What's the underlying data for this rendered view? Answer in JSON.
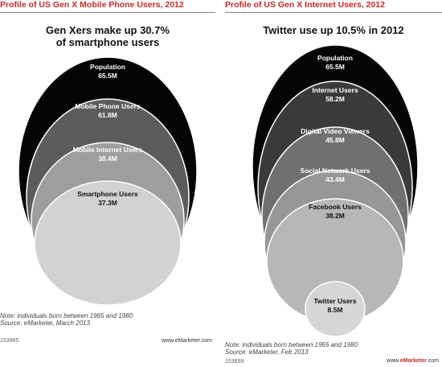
{
  "chart_data": [
    {
      "type": "nested-circles",
      "title": "Profile of US Gen X Mobile Phone Users, 2012",
      "headline": [
        "Gen Xers make up 30.7%",
        "of smartphone users"
      ],
      "categories": [
        "Population",
        "Mobile Phone Users",
        "Mobile Internet Users",
        "Smartphone Users"
      ],
      "values": [
        "65.5M",
        "61.8M",
        "38.4M",
        "37.3M"
      ],
      "fills": [
        "#050505",
        "#5c5c5c",
        "#9e9e9e",
        "#d2d2d2"
      ],
      "label_colors": [
        "#ffffff",
        "#ffffff",
        "#ffffff",
        "#111111"
      ],
      "note": [
        "Note: individuals born between 1965 and 1980",
        "Source: eMarketer, March 2013"
      ],
      "id": "153965",
      "brand": "www.eMarketer.com"
    },
    {
      "type": "nested-circles",
      "title": "Profile of US Gen X Internet Users, 2012",
      "headline": [
        "Twitter use up 10.5% in 2012"
      ],
      "categories": [
        "Population",
        "Internet Users",
        "Digital Video Viewers",
        "Social Network Users",
        "Facebook Users",
        "Twitter Users"
      ],
      "values": [
        "65.5M",
        "58.2M",
        "45.8M",
        "43.4M",
        "38.2M",
        "8.5M"
      ],
      "fills": [
        "#050505",
        "#3a3a3a",
        "#707070",
        "#979797",
        "#b7b7b7",
        "#d6d6d6"
      ],
      "label_colors": [
        "#ffffff",
        "#ffffff",
        "#ffffff",
        "#ffffff",
        "#111111",
        "#111111"
      ],
      "note": [
        "Note: individuals born between 1965 and 1980",
        "Source: eMarketer, Feb 2013"
      ],
      "id": "153899",
      "brand": "www.eMarketer.com"
    }
  ]
}
